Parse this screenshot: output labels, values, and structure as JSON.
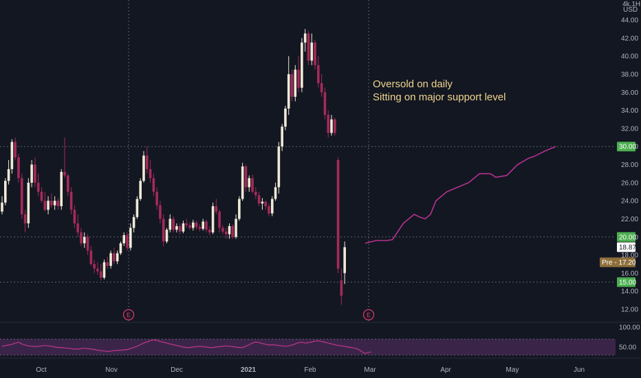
{
  "chart_data": {
    "type": "candlestick",
    "price_axis": {
      "unit_top": "4k.1H",
      "currency": "USD",
      "ticks": [
        "44.00",
        "42.00",
        "40.00",
        "38.00",
        "36.00",
        "34.00",
        "32.00",
        "30.00",
        "28.00",
        "26.00",
        "24.00",
        "22.00",
        "20.00",
        "18.00",
        "16.00",
        "14.00",
        "12.00"
      ],
      "ylim": [
        11,
        45
      ]
    },
    "x_axis": {
      "ticks": [
        "Oct",
        "Nov",
        "Dec",
        "2021",
        "Feb",
        "Mar",
        "Apr",
        "May",
        "Jun"
      ]
    },
    "rsi_axis": {
      "ticks": [
        "100.00",
        "50.00"
      ],
      "ylim": [
        35,
        100
      ],
      "band": [
        30,
        70
      ]
    },
    "candles": [
      [
        22.8,
        24.5,
        22.5,
        23.8
      ],
      [
        23.8,
        26.5,
        23.5,
        26.2
      ],
      [
        26.2,
        28.5,
        25.8,
        27.5
      ],
      [
        27.5,
        30.8,
        27.0,
        30.5
      ],
      [
        30.5,
        31.0,
        28.5,
        28.8
      ],
      [
        28.8,
        29.2,
        26.0,
        26.5
      ],
      [
        26.5,
        27.0,
        22.0,
        22.5
      ],
      [
        22.5,
        23.0,
        20.5,
        21.5
      ],
      [
        21.5,
        26.5,
        21.0,
        26.0
      ],
      [
        26.0,
        28.5,
        25.5,
        28.0
      ],
      [
        28.0,
        28.8,
        25.5,
        26.0
      ],
      [
        26.0,
        27.0,
        24.5,
        25.0
      ],
      [
        25.0,
        25.5,
        23.8,
        24.0
      ],
      [
        24.0,
        25.0,
        22.8,
        23.0
      ],
      [
        23.0,
        24.5,
        22.5,
        24.0
      ],
      [
        24.0,
        24.8,
        23.2,
        23.5
      ],
      [
        23.5,
        24.5,
        23.0,
        24.0
      ],
      [
        24.0,
        24.3,
        23.0,
        23.4
      ],
      [
        23.4,
        27.5,
        23.0,
        27.2
      ],
      [
        27.2,
        31.0,
        26.5,
        26.8
      ],
      [
        26.8,
        27.0,
        24.5,
        25.0
      ],
      [
        25.0,
        25.5,
        22.5,
        23.0
      ],
      [
        23.0,
        23.5,
        21.0,
        21.5
      ],
      [
        21.5,
        22.5,
        20.0,
        20.5
      ],
      [
        20.5,
        21.0,
        19.0,
        19.3
      ],
      [
        19.3,
        20.5,
        18.8,
        20.0
      ],
      [
        20.0,
        20.3,
        18.0,
        18.5
      ],
      [
        18.5,
        19.0,
        16.8,
        17.0
      ],
      [
        17.0,
        17.5,
        16.0,
        16.5
      ],
      [
        16.5,
        17.2,
        15.8,
        16.2
      ],
      [
        16.2,
        17.0,
        15.2,
        15.5
      ],
      [
        15.5,
        17.5,
        15.3,
        17.2
      ],
      [
        17.2,
        17.8,
        16.5,
        16.8
      ],
      [
        16.8,
        18.5,
        16.5,
        18.2
      ],
      [
        18.2,
        18.8,
        17.0,
        17.3
      ],
      [
        17.3,
        18.5,
        17.0,
        18.2
      ],
      [
        18.2,
        19.5,
        18.0,
        19.3
      ],
      [
        19.3,
        20.5,
        19.0,
        20.2
      ],
      [
        20.2,
        20.5,
        18.5,
        18.8
      ],
      [
        18.8,
        21.5,
        18.5,
        21.0
      ],
      [
        21.0,
        22.5,
        20.5,
        22.2
      ],
      [
        22.2,
        24.5,
        22.0,
        24.2
      ],
      [
        24.2,
        26.5,
        24.0,
        26.2
      ],
      [
        26.2,
        29.5,
        26.0,
        29.0
      ],
      [
        29.0,
        30.0,
        27.0,
        27.5
      ],
      [
        27.5,
        28.5,
        26.0,
        26.5
      ],
      [
        26.5,
        27.0,
        24.5,
        25.0
      ],
      [
        25.0,
        25.5,
        23.0,
        23.5
      ],
      [
        23.5,
        24.0,
        21.5,
        22.0
      ],
      [
        22.0,
        22.5,
        19.0,
        19.5
      ],
      [
        19.5,
        21.0,
        19.3,
        20.8
      ],
      [
        20.8,
        22.5,
        20.5,
        22.0
      ],
      [
        22.0,
        22.3,
        20.5,
        20.8
      ],
      [
        20.8,
        21.5,
        20.5,
        21.2
      ],
      [
        21.2,
        21.5,
        20.3,
        20.6
      ],
      [
        20.6,
        21.8,
        20.4,
        21.5
      ],
      [
        21.5,
        22.0,
        21.0,
        21.3
      ],
      [
        21.3,
        21.6,
        20.8,
        21.0
      ],
      [
        21.0,
        21.9,
        20.7,
        21.6
      ],
      [
        21.6,
        21.8,
        20.8,
        21.1
      ],
      [
        21.1,
        21.4,
        20.6,
        20.9
      ],
      [
        20.9,
        22.0,
        20.7,
        21.7
      ],
      [
        21.7,
        21.9,
        20.5,
        20.8
      ],
      [
        20.8,
        21.2,
        20.2,
        20.5
      ],
      [
        20.5,
        23.8,
        20.3,
        23.4
      ],
      [
        23.4,
        24.2,
        22.5,
        22.8
      ],
      [
        22.8,
        23.0,
        20.5,
        21.0
      ],
      [
        21.0,
        21.3,
        20.3,
        20.6
      ],
      [
        20.6,
        21.0,
        19.8,
        20.3
      ],
      [
        20.3,
        21.5,
        19.8,
        21.2
      ],
      [
        21.2,
        21.4,
        19.8,
        20.0
      ],
      [
        20.0,
        22.5,
        19.8,
        22.0
      ],
      [
        22.0,
        24.5,
        21.8,
        24.2
      ],
      [
        24.2,
        28.2,
        24.0,
        27.8
      ],
      [
        27.8,
        28.0,
        25.0,
        25.5
      ],
      [
        25.5,
        26.8,
        25.0,
        26.5
      ],
      [
        26.5,
        26.9,
        24.8,
        25.0
      ],
      [
        25.0,
        25.5,
        24.2,
        24.6
      ],
      [
        24.6,
        25.0,
        23.4,
        23.7
      ],
      [
        23.7,
        24.3,
        23.0,
        23.9
      ],
      [
        23.9,
        24.0,
        23.0,
        23.4
      ],
      [
        23.4,
        23.7,
        22.3,
        22.6
      ],
      [
        22.6,
        24.5,
        22.3,
        24.2
      ],
      [
        24.2,
        26.0,
        24.0,
        25.5
      ],
      [
        25.5,
        30.5,
        24.8,
        30.0
      ],
      [
        30.0,
        32.5,
        29.5,
        32.2
      ],
      [
        32.2,
        34.5,
        31.8,
        34.2
      ],
      [
        34.2,
        40.0,
        33.5,
        38.0
      ],
      [
        38.0,
        38.5,
        35.0,
        35.5
      ],
      [
        35.5,
        39.0,
        35.0,
        38.5
      ],
      [
        38.5,
        40.0,
        36.0,
        36.5
      ],
      [
        36.5,
        42.0,
        36.0,
        41.5
      ],
      [
        41.5,
        43.0,
        40.5,
        42.5
      ],
      [
        42.5,
        42.8,
        39.0,
        39.5
      ],
      [
        39.5,
        42.5,
        39.0,
        41.5
      ],
      [
        41.5,
        41.8,
        38.5,
        39.0
      ],
      [
        39.0,
        40.0,
        36.5,
        37.0
      ],
      [
        37.0,
        38.0,
        35.5,
        36.0
      ],
      [
        36.0,
        36.5,
        33.0,
        33.5
      ],
      [
        33.5,
        34.0,
        31.0,
        31.5
      ],
      [
        31.5,
        33.5,
        31.2,
        33.0
      ],
      [
        33.0,
        33.2,
        31.2,
        31.5
      ],
      [
        28.5,
        28.8,
        16.0,
        16.5
      ],
      [
        15.2,
        16.5,
        12.5,
        13.5
      ],
      [
        16.0,
        19.5,
        14.8,
        18.87
      ]
    ],
    "forecast_path": [
      [
        0,
        19.3
      ],
      [
        2,
        19.6
      ],
      [
        4,
        19.6
      ],
      [
        5,
        19.7
      ],
      [
        7,
        21.5
      ],
      [
        9,
        22.5
      ],
      [
        10,
        22.2
      ],
      [
        11,
        22.0
      ],
      [
        12,
        22.5
      ],
      [
        13,
        24.0
      ],
      [
        15,
        25.0
      ],
      [
        17,
        25.5
      ],
      [
        19,
        26.0
      ],
      [
        21,
        27.0
      ],
      [
        23,
        27.0
      ],
      [
        24,
        26.6
      ],
      [
        26,
        26.8
      ],
      [
        28,
        28.0
      ],
      [
        30,
        28.7
      ],
      [
        31,
        28.9
      ],
      [
        33,
        29.5
      ],
      [
        35,
        30.0
      ]
    ],
    "levels": [
      {
        "value": 30.0,
        "label": "30.00",
        "color": "#4caf50"
      },
      {
        "value": 20.0,
        "label": "20.00",
        "color": "#4caf50"
      },
      {
        "value": 15.0,
        "label": "15.00",
        "color": "#4caf50"
      },
      {
        "value": 18.87,
        "label": "18.87",
        "color": "#ffffff"
      },
      {
        "value": 17.2,
        "label": "Pre - 17.20",
        "color": "#8d6e3a"
      }
    ],
    "earnings_markers": [
      {
        "label": "E",
        "at": "Nov"
      },
      {
        "label": "E",
        "at": "Mar"
      }
    ],
    "rsi": [
      52,
      54,
      55,
      57,
      60,
      62,
      58,
      55,
      53,
      52,
      51,
      52,
      53,
      54,
      53,
      52,
      50,
      49,
      49,
      48,
      47,
      46,
      45,
      45,
      46,
      47,
      46,
      45,
      44,
      42,
      41,
      40,
      39,
      40,
      41,
      42,
      42,
      43,
      44,
      46,
      49,
      52,
      56,
      60,
      63,
      66,
      68,
      67,
      64,
      62,
      60,
      58,
      56,
      54,
      52,
      50,
      49,
      49,
      50,
      51,
      52,
      51,
      50,
      49,
      49,
      50,
      51,
      52,
      53,
      52,
      51,
      50,
      49,
      49,
      52,
      56,
      60,
      63,
      61,
      59,
      57,
      55,
      56,
      55,
      54,
      53,
      52,
      53,
      55,
      58,
      61,
      62,
      60,
      61,
      63,
      65,
      66,
      64,
      62,
      60,
      58,
      56,
      54,
      53,
      52,
      50,
      49,
      47,
      45,
      40,
      34,
      36,
      38
    ],
    "colors": {
      "up": "#f0ead6",
      "down": "#a52a5a",
      "forecast": "#b5318f",
      "rsi_line": "#c2368f",
      "rsi_band": "#3a2548",
      "background": "#131722",
      "annotation": "#f0d58c"
    },
    "annotation": [
      "Oversold on daily",
      "Sitting on major support level"
    ]
  }
}
